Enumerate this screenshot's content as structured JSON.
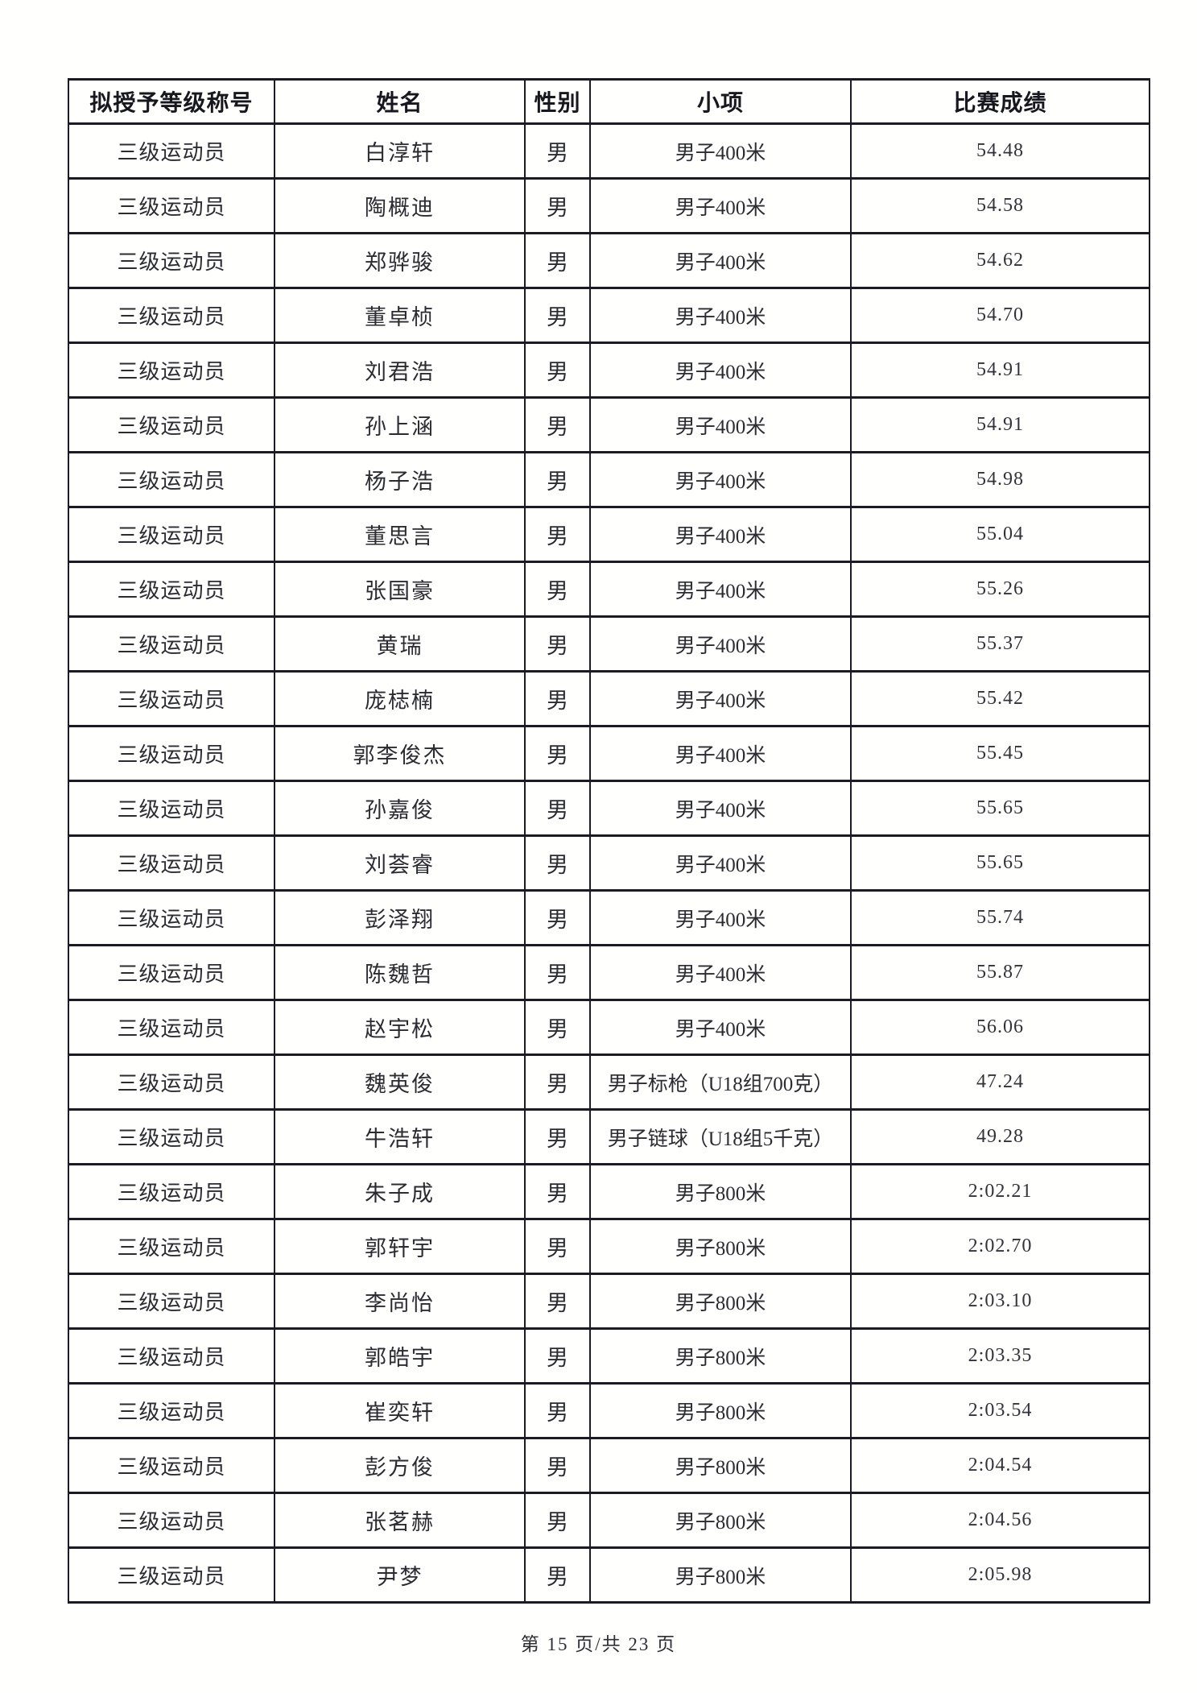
{
  "document": {
    "footer": "第 15 页/共 23 页"
  },
  "table": {
    "columns": [
      "拟授予等级称号",
      "姓名",
      "性别",
      "小项",
      "比赛成绩"
    ],
    "column_keys": [
      "rank-title",
      "name",
      "gender",
      "event",
      "result"
    ],
    "rows": [
      [
        "三级运动员",
        "白淳轩",
        "男",
        "男子400米",
        "54.48"
      ],
      [
        "三级运动员",
        "陶概迪",
        "男",
        "男子400米",
        "54.58"
      ],
      [
        "三级运动员",
        "郑骅骏",
        "男",
        "男子400米",
        "54.62"
      ],
      [
        "三级运动员",
        "董卓桢",
        "男",
        "男子400米",
        "54.70"
      ],
      [
        "三级运动员",
        "刘君浩",
        "男",
        "男子400米",
        "54.91"
      ],
      [
        "三级运动员",
        "孙上涵",
        "男",
        "男子400米",
        "54.91"
      ],
      [
        "三级运动员",
        "杨子浩",
        "男",
        "男子400米",
        "54.98"
      ],
      [
        "三级运动员",
        "董思言",
        "男",
        "男子400米",
        "55.04"
      ],
      [
        "三级运动员",
        "张国豪",
        "男",
        "男子400米",
        "55.26"
      ],
      [
        "三级运动员",
        "黄瑞",
        "男",
        "男子400米",
        "55.37"
      ],
      [
        "三级运动员",
        "庞梽楠",
        "男",
        "男子400米",
        "55.42"
      ],
      [
        "三级运动员",
        "郭李俊杰",
        "男",
        "男子400米",
        "55.45"
      ],
      [
        "三级运动员",
        "孙嘉俊",
        "男",
        "男子400米",
        "55.65"
      ],
      [
        "三级运动员",
        "刘荟睿",
        "男",
        "男子400米",
        "55.65"
      ],
      [
        "三级运动员",
        "彭泽翔",
        "男",
        "男子400米",
        "55.74"
      ],
      [
        "三级运动员",
        "陈魏哲",
        "男",
        "男子400米",
        "55.87"
      ],
      [
        "三级运动员",
        "赵宇松",
        "男",
        "男子400米",
        "56.06"
      ],
      [
        "三级运动员",
        "魏英俊",
        "男",
        "男子标枪（U18组700克）",
        "47.24"
      ],
      [
        "三级运动员",
        "牛浩轩",
        "男",
        "男子链球（U18组5千克）",
        "49.28"
      ],
      [
        "三级运动员",
        "朱子成",
        "男",
        "男子800米",
        "2:02.21"
      ],
      [
        "三级运动员",
        "郭轩宇",
        "男",
        "男子800米",
        "2:02.70"
      ],
      [
        "三级运动员",
        "李尚怡",
        "男",
        "男子800米",
        "2:03.10"
      ],
      [
        "三级运动员",
        "郭皓宇",
        "男",
        "男子800米",
        "2:03.35"
      ],
      [
        "三级运动员",
        "崔奕轩",
        "男",
        "男子800米",
        "2:03.54"
      ],
      [
        "三级运动员",
        "彭方俊",
        "男",
        "男子800米",
        "2:04.54"
      ],
      [
        "三级运动员",
        "张茗赫",
        "男",
        "男子800米",
        "2:04.56"
      ],
      [
        "三级运动员",
        "尹梦",
        "男",
        "男子800米",
        "2:05.98"
      ]
    ]
  }
}
